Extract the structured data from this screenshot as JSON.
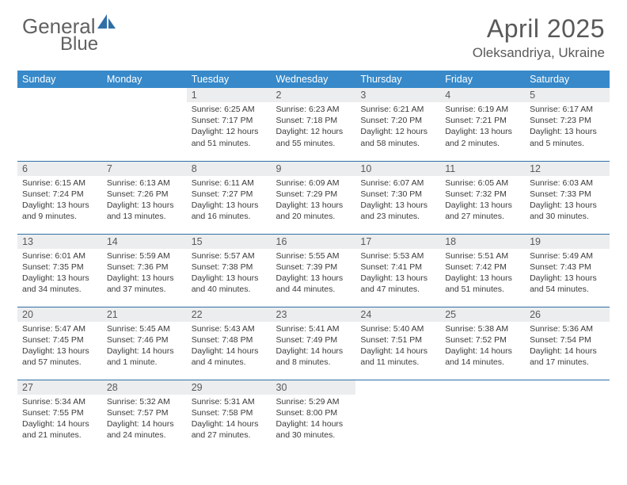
{
  "brand": {
    "line1": "General",
    "line2": "Blue"
  },
  "title": "April 2025",
  "location": "Oleksandriya, Ukraine",
  "colors": {
    "header_bg": "#3789c9",
    "header_text": "#ffffff",
    "daynum_bg": "#ecedee",
    "daynum_text": "#595959",
    "body_text": "#3b3b3b",
    "title_text": "#595959",
    "rule": "#2f6fa8",
    "logo_text": "#616161",
    "logo_icon": "#2f6fa8"
  },
  "day_names": [
    "Sunday",
    "Monday",
    "Tuesday",
    "Wednesday",
    "Thursday",
    "Friday",
    "Saturday"
  ],
  "weeks": [
    [
      null,
      null,
      {
        "n": "1",
        "sr": "6:25 AM",
        "ss": "7:17 PM",
        "dl": "12 hours and 51 minutes."
      },
      {
        "n": "2",
        "sr": "6:23 AM",
        "ss": "7:18 PM",
        "dl": "12 hours and 55 minutes."
      },
      {
        "n": "3",
        "sr": "6:21 AM",
        "ss": "7:20 PM",
        "dl": "12 hours and 58 minutes."
      },
      {
        "n": "4",
        "sr": "6:19 AM",
        "ss": "7:21 PM",
        "dl": "13 hours and 2 minutes."
      },
      {
        "n": "5",
        "sr": "6:17 AM",
        "ss": "7:23 PM",
        "dl": "13 hours and 5 minutes."
      }
    ],
    [
      {
        "n": "6",
        "sr": "6:15 AM",
        "ss": "7:24 PM",
        "dl": "13 hours and 9 minutes."
      },
      {
        "n": "7",
        "sr": "6:13 AM",
        "ss": "7:26 PM",
        "dl": "13 hours and 13 minutes."
      },
      {
        "n": "8",
        "sr": "6:11 AM",
        "ss": "7:27 PM",
        "dl": "13 hours and 16 minutes."
      },
      {
        "n": "9",
        "sr": "6:09 AM",
        "ss": "7:29 PM",
        "dl": "13 hours and 20 minutes."
      },
      {
        "n": "10",
        "sr": "6:07 AM",
        "ss": "7:30 PM",
        "dl": "13 hours and 23 minutes."
      },
      {
        "n": "11",
        "sr": "6:05 AM",
        "ss": "7:32 PM",
        "dl": "13 hours and 27 minutes."
      },
      {
        "n": "12",
        "sr": "6:03 AM",
        "ss": "7:33 PM",
        "dl": "13 hours and 30 minutes."
      }
    ],
    [
      {
        "n": "13",
        "sr": "6:01 AM",
        "ss": "7:35 PM",
        "dl": "13 hours and 34 minutes."
      },
      {
        "n": "14",
        "sr": "5:59 AM",
        "ss": "7:36 PM",
        "dl": "13 hours and 37 minutes."
      },
      {
        "n": "15",
        "sr": "5:57 AM",
        "ss": "7:38 PM",
        "dl": "13 hours and 40 minutes."
      },
      {
        "n": "16",
        "sr": "5:55 AM",
        "ss": "7:39 PM",
        "dl": "13 hours and 44 minutes."
      },
      {
        "n": "17",
        "sr": "5:53 AM",
        "ss": "7:41 PM",
        "dl": "13 hours and 47 minutes."
      },
      {
        "n": "18",
        "sr": "5:51 AM",
        "ss": "7:42 PM",
        "dl": "13 hours and 51 minutes."
      },
      {
        "n": "19",
        "sr": "5:49 AM",
        "ss": "7:43 PM",
        "dl": "13 hours and 54 minutes."
      }
    ],
    [
      {
        "n": "20",
        "sr": "5:47 AM",
        "ss": "7:45 PM",
        "dl": "13 hours and 57 minutes."
      },
      {
        "n": "21",
        "sr": "5:45 AM",
        "ss": "7:46 PM",
        "dl": "14 hours and 1 minute."
      },
      {
        "n": "22",
        "sr": "5:43 AM",
        "ss": "7:48 PM",
        "dl": "14 hours and 4 minutes."
      },
      {
        "n": "23",
        "sr": "5:41 AM",
        "ss": "7:49 PM",
        "dl": "14 hours and 8 minutes."
      },
      {
        "n": "24",
        "sr": "5:40 AM",
        "ss": "7:51 PM",
        "dl": "14 hours and 11 minutes."
      },
      {
        "n": "25",
        "sr": "5:38 AM",
        "ss": "7:52 PM",
        "dl": "14 hours and 14 minutes."
      },
      {
        "n": "26",
        "sr": "5:36 AM",
        "ss": "7:54 PM",
        "dl": "14 hours and 17 minutes."
      }
    ],
    [
      {
        "n": "27",
        "sr": "5:34 AM",
        "ss": "7:55 PM",
        "dl": "14 hours and 21 minutes."
      },
      {
        "n": "28",
        "sr": "5:32 AM",
        "ss": "7:57 PM",
        "dl": "14 hours and 24 minutes."
      },
      {
        "n": "29",
        "sr": "5:31 AM",
        "ss": "7:58 PM",
        "dl": "14 hours and 27 minutes."
      },
      {
        "n": "30",
        "sr": "5:29 AM",
        "ss": "8:00 PM",
        "dl": "14 hours and 30 minutes."
      },
      null,
      null,
      null
    ]
  ],
  "labels": {
    "sunrise": "Sunrise:",
    "sunset": "Sunset:",
    "daylight": "Daylight:"
  }
}
